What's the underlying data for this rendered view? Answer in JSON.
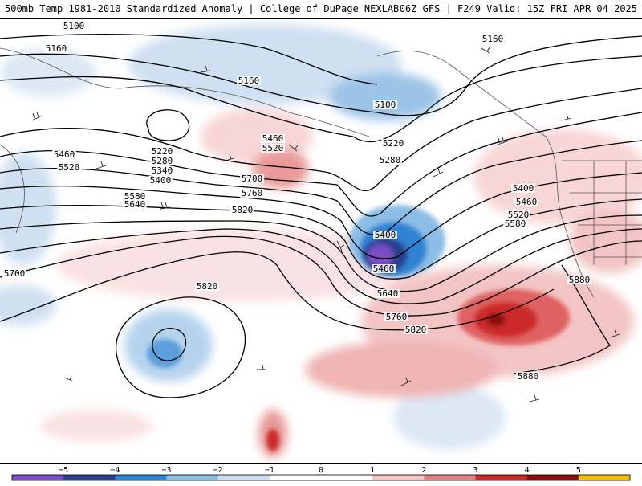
{
  "header": {
    "title_left": "500mb Temp 1981-2010 Standardized Anomaly | College of DuPage NEXLAB",
    "title_right": "06Z GFS | F249 Valid: 15Z FRI APR 04 2025"
  },
  "contours": [
    {
      "label": "5100"
    },
    {
      "label": "5160"
    },
    {
      "label": "5160"
    },
    {
      "label": "5160"
    },
    {
      "label": "5100"
    },
    {
      "label": "5220"
    },
    {
      "label": "5280"
    },
    {
      "label": "5340"
    },
    {
      "label": "5400"
    },
    {
      "label": "5460"
    },
    {
      "label": "5520"
    },
    {
      "label": "5460"
    },
    {
      "label": "5520"
    },
    {
      "label": "5580"
    },
    {
      "label": "5640"
    },
    {
      "label": "5700"
    },
    {
      "label": "5760"
    },
    {
      "label": "5820"
    },
    {
      "label": "5700"
    },
    {
      "label": "5820"
    },
    {
      "label": "5220"
    },
    {
      "label": "5280"
    },
    {
      "label": "5400"
    },
    {
      "label": "5460"
    },
    {
      "label": "5400"
    },
    {
      "label": "5460"
    },
    {
      "label": "5520"
    },
    {
      "label": "5580"
    },
    {
      "label": "5640"
    },
    {
      "label": "5760"
    },
    {
      "label": "5820"
    },
    {
      "label": "5880"
    },
    {
      "label": "5880"
    }
  ],
  "colorbar": {
    "ticks": [
      "−5",
      "−4",
      "−3",
      "−2",
      "−1",
      "0",
      "1",
      "2",
      "3",
      "4",
      "5"
    ],
    "colors": [
      "#7a4fc4",
      "#2b3f8f",
      "#2f83d3",
      "#8cbde6",
      "#cfe0f2",
      "#ffffff",
      "#ffffff",
      "#f3c4c4",
      "#e08080",
      "#cc2a2a",
      "#8a0d0d",
      "#f6c000"
    ]
  },
  "colors": {
    "cold_anomaly": "#2f83d3",
    "warm_anomaly": "#cc2a2a",
    "contour": "#000000"
  }
}
